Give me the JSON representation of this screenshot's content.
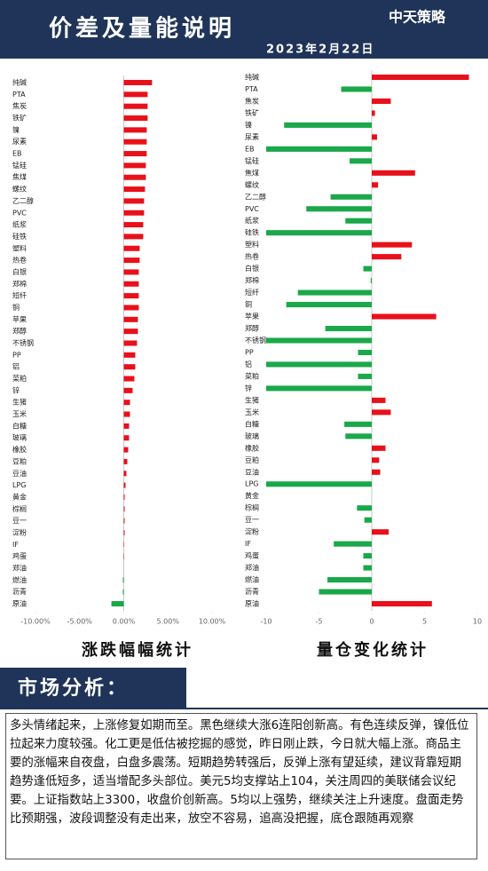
{
  "header": {
    "title": "价差及量能说明",
    "date": "2023年2月22日",
    "logo": "中天策略"
  },
  "chart_data": [
    {
      "type": "bar",
      "orientation": "horizontal",
      "title": "涨跌幅幅统计",
      "categories": [
        "纯碱",
        "PTA",
        "焦炭",
        "铁矿",
        "镍",
        "尿素",
        "EB",
        "锰硅",
        "焦煤",
        "螺纹",
        "乙二醇",
        "PVC",
        "纸浆",
        "硅铁",
        "塑料",
        "热卷",
        "白银",
        "郑棉",
        "短纤",
        "铜",
        "苹果",
        "郑醇",
        "不锈钢",
        "PP",
        "铝",
        "菜粕",
        "锌",
        "生猪",
        "玉米",
        "白糖",
        "玻璃",
        "橡胶",
        "豆粕",
        "豆油",
        "LPG",
        "黄金",
        "棕榈",
        "豆一",
        "淀粉",
        "IF",
        "鸡蛋",
        "郑油",
        "燃油",
        "沥青",
        "原油"
      ],
      "values": [
        3.2,
        2.7,
        2.7,
        2.7,
        2.6,
        2.6,
        2.6,
        2.5,
        2.5,
        2.4,
        2.3,
        2.3,
        2.2,
        2.2,
        1.8,
        1.8,
        1.7,
        1.7,
        1.7,
        1.7,
        1.6,
        1.6,
        1.5,
        1.3,
        1.3,
        1.2,
        1.0,
        0.7,
        0.7,
        0.6,
        0.6,
        0.5,
        0.4,
        0.3,
        0.2,
        0.1,
        0.1,
        0.1,
        0.1,
        0.05,
        0.05,
        0,
        -0.1,
        -0.1,
        -1.4
      ],
      "positive_color": "#e8101a",
      "negative_color": "#1aa84a",
      "xlim": [
        -10,
        10
      ],
      "xticks": [
        {
          "value": -10,
          "label": "-10.00%"
        },
        {
          "value": -5,
          "label": "-5.00%"
        },
        {
          "value": 0,
          "label": "0.00%"
        },
        {
          "value": 5,
          "label": "5.00%"
        },
        {
          "value": 10,
          "label": "10.00%"
        }
      ]
    },
    {
      "type": "bar",
      "orientation": "horizontal",
      "title": "量仓变化统计",
      "categories": [
        "纯碱",
        "PTA",
        "焦炭",
        "铁矿",
        "镍",
        "尿素",
        "EB",
        "锰硅",
        "焦煤",
        "螺纹",
        "乙二醇",
        "PVC",
        "纸浆",
        "硅铁",
        "塑料",
        "热卷",
        "白银",
        "郑棉",
        "短纤",
        "铜",
        "苹果",
        "郑醇",
        "不锈钢",
        "PP",
        "铝",
        "菜粕",
        "锌",
        "生猪",
        "玉米",
        "白糖",
        "玻璃",
        "橡胶",
        "豆粕",
        "豆油",
        "LPG",
        "黄金",
        "棕榈",
        "豆一",
        "淀粉",
        "IF",
        "鸡蛋",
        "郑油",
        "燃油",
        "沥青",
        "原油"
      ],
      "values": [
        9.2,
        -2.9,
        1.8,
        0.3,
        -8.3,
        0.5,
        -10,
        -2.1,
        4.1,
        0.6,
        -3.9,
        -6.2,
        -2.5,
        -10,
        3.8,
        2.8,
        -0.8,
        -0.1,
        -7.0,
        -8.1,
        6.1,
        -4.4,
        -10,
        -1.3,
        -10,
        -1.3,
        -10,
        1.3,
        1.8,
        -2.6,
        -2.5,
        1.3,
        0.7,
        0.8,
        -10,
        0,
        -1.4,
        -0.7,
        1.6,
        -3.6,
        -0.8,
        -0.8,
        -4.2,
        -5.0,
        5.7
      ],
      "positive_color": "#e8101a",
      "negative_color": "#1aa84a",
      "xlim": [
        -10,
        10
      ],
      "xticks": [
        -10,
        -5,
        0,
        5,
        10
      ]
    }
  ],
  "analysis": {
    "title": "市场分析：",
    "text": "多头情绪起来，上涨修复如期而至。黑色继续大涨6连阳创新高。有色连续反弹，镍低位拉起来力度较强。化工更是低估被挖掘的感觉，昨日刚止跌，今日就大幅上涨。商品主要的涨幅来自夜盘，白盘多震荡。短期趋势转强后，反弹上涨有望延续，建议背靠短期趋势逢低短多，适当增配多头部位。美元5均支撑站上104，关注周四的美联储会议纪要。上证指数站上3300，收盘价创新高。5均以上强势，继续关注上升速度。盘面走势比预期强，波段调整没有走出来，放空不容易，追高没把握，底仓跟随再观察"
  }
}
